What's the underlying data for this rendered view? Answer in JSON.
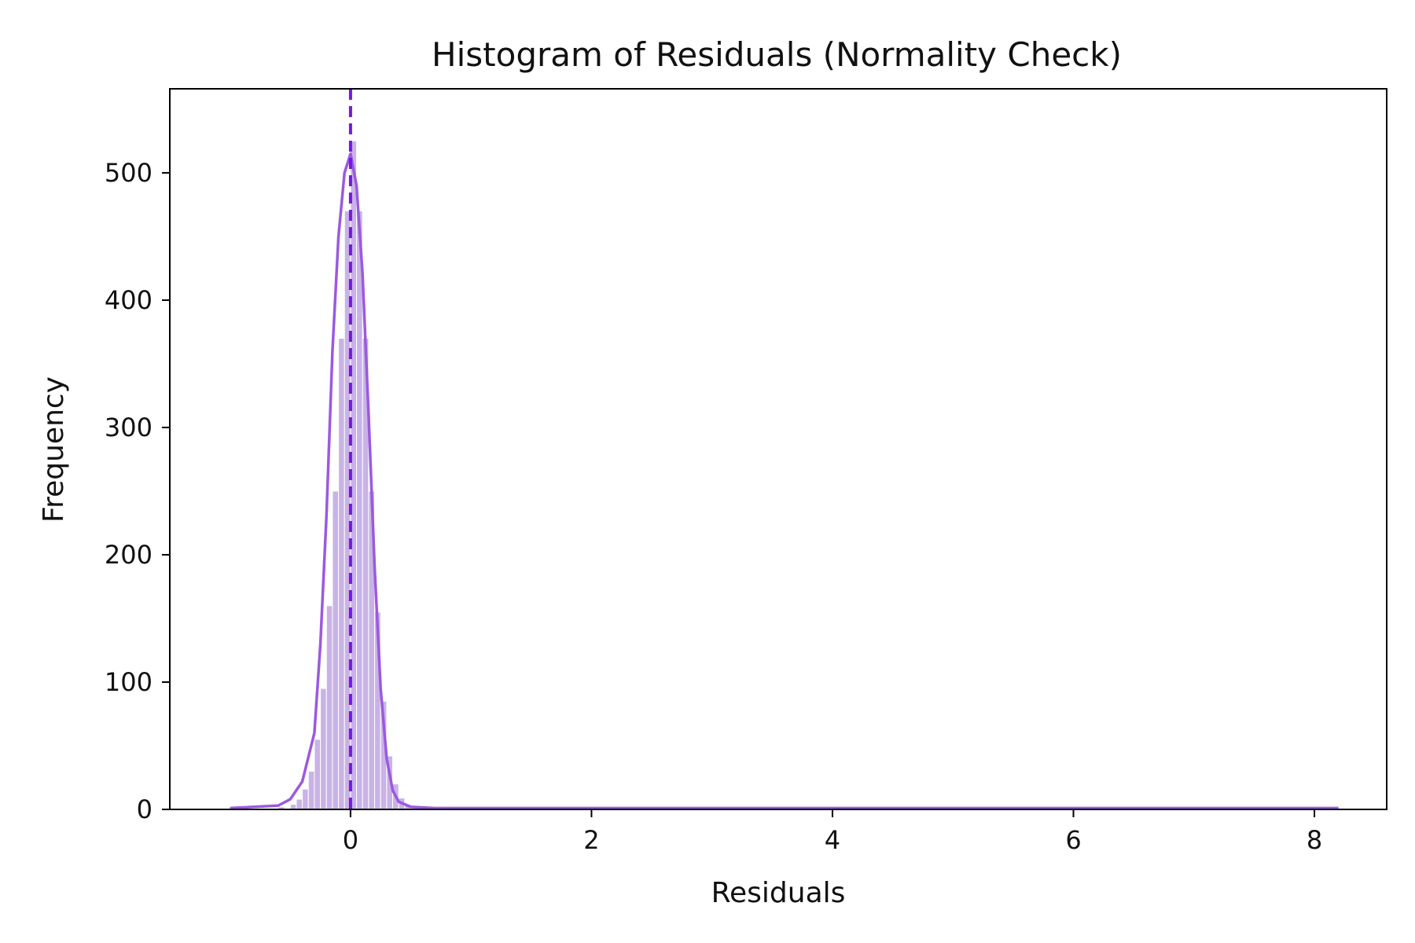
{
  "chart_data": {
    "type": "bar",
    "subtype": "histogram",
    "title": "Histogram of Residuals (Normality Check)",
    "xlabel": "Residuals",
    "ylabel": "Frequency",
    "xlim": [
      -1.5,
      8.6
    ],
    "ylim": [
      0,
      566
    ],
    "x_ticks": [
      {
        "value": 0,
        "label": "0"
      },
      {
        "value": 2,
        "label": "2"
      },
      {
        "value": 4,
        "label": "4"
      },
      {
        "value": 6,
        "label": "6"
      },
      {
        "value": 8,
        "label": "8"
      }
    ],
    "y_ticks": [
      {
        "value": 0,
        "label": "0"
      },
      {
        "value": 100,
        "label": "100"
      },
      {
        "value": 200,
        "label": "200"
      },
      {
        "value": 300,
        "label": "300"
      },
      {
        "value": 400,
        "label": "400"
      },
      {
        "value": 500,
        "label": "500"
      }
    ],
    "grid": false,
    "bin_width": 0.05,
    "bins": [
      [
        -1.0,
        1
      ],
      [
        -0.85,
        1
      ],
      [
        -0.6,
        2
      ],
      [
        -0.5,
        4
      ],
      [
        -0.45,
        8
      ],
      [
        -0.4,
        16
      ],
      [
        -0.35,
        30
      ],
      [
        -0.3,
        55
      ],
      [
        -0.25,
        95
      ],
      [
        -0.2,
        160
      ],
      [
        -0.15,
        250
      ],
      [
        -0.1,
        370
      ],
      [
        -0.05,
        470
      ],
      [
        0.0,
        525
      ],
      [
        0.05,
        470
      ],
      [
        0.1,
        370
      ],
      [
        0.15,
        250
      ],
      [
        0.2,
        155
      ],
      [
        0.25,
        85
      ],
      [
        0.3,
        42
      ],
      [
        0.35,
        20
      ],
      [
        0.4,
        9
      ],
      [
        0.45,
        4
      ],
      [
        0.5,
        2
      ],
      [
        0.6,
        1
      ],
      [
        1.0,
        2
      ],
      [
        8.2,
        1
      ]
    ],
    "kde": [
      [
        -1.0,
        1
      ],
      [
        -0.8,
        2
      ],
      [
        -0.6,
        3
      ],
      [
        -0.5,
        8
      ],
      [
        -0.4,
        22
      ],
      [
        -0.3,
        60
      ],
      [
        -0.25,
        130
      ],
      [
        -0.2,
        230
      ],
      [
        -0.15,
        360
      ],
      [
        -0.1,
        450
      ],
      [
        -0.05,
        500
      ],
      [
        0.0,
        515
      ],
      [
        0.05,
        490
      ],
      [
        0.1,
        420
      ],
      [
        0.15,
        310
      ],
      [
        0.2,
        190
      ],
      [
        0.25,
        95
      ],
      [
        0.3,
        40
      ],
      [
        0.35,
        15
      ],
      [
        0.4,
        6
      ],
      [
        0.5,
        2
      ],
      [
        0.7,
        1
      ],
      [
        1.0,
        1
      ],
      [
        2.0,
        1
      ],
      [
        4.0,
        1
      ],
      [
        6.0,
        1
      ],
      [
        8.2,
        1
      ]
    ],
    "mean_line": {
      "x": 0,
      "style": "dashed"
    },
    "colors": {
      "bar_fill": "#c9b3e6",
      "bar_edge": "#ffffff",
      "kde_line": "#9b59e0",
      "mean_line": "#7a14e6",
      "axes": "#000000"
    }
  }
}
